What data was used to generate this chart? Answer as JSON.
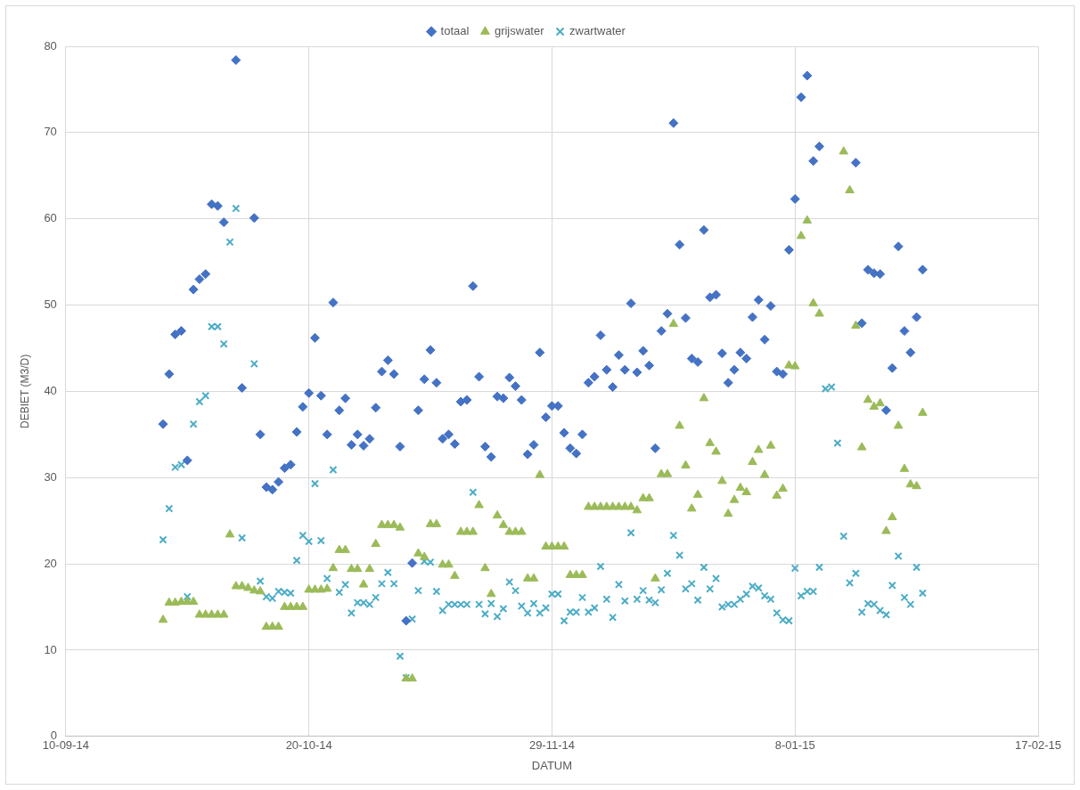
{
  "chart_data": {
    "type": "scatter",
    "xlabel": "DATUM",
    "ylabel": "DEBIET (M3/D)",
    "x": [
      "2014-09-26",
      "2014-09-27",
      "2014-09-28",
      "2014-09-29",
      "2014-09-30",
      "2014-10-01",
      "2014-10-02",
      "2014-10-03",
      "2014-10-04",
      "2014-10-05",
      "2014-10-06",
      "2014-10-07",
      "2014-10-08",
      "2014-10-09",
      "2014-10-10",
      "2014-10-11",
      "2014-10-12",
      "2014-10-13",
      "2014-10-14",
      "2014-10-15",
      "2014-10-16",
      "2014-10-17",
      "2014-10-18",
      "2014-10-19",
      "2014-10-20",
      "2014-10-21",
      "2014-10-22",
      "2014-10-23",
      "2014-10-24",
      "2014-10-25",
      "2014-10-26",
      "2014-10-27",
      "2014-10-28",
      "2014-10-29",
      "2014-10-30",
      "2014-10-31",
      "2014-11-01",
      "2014-11-02",
      "2014-11-03",
      "2014-11-04",
      "2014-11-05",
      "2014-11-06",
      "2014-11-07",
      "2014-11-08",
      "2014-11-09",
      "2014-11-10",
      "2014-11-11",
      "2014-11-12",
      "2014-11-13",
      "2014-11-14",
      "2014-11-15",
      "2014-11-16",
      "2014-11-17",
      "2014-11-18",
      "2014-11-19",
      "2014-11-20",
      "2014-11-21",
      "2014-11-22",
      "2014-11-23",
      "2014-11-24",
      "2014-11-25",
      "2014-11-26",
      "2014-11-27",
      "2014-11-28",
      "2014-11-29",
      "2014-11-30",
      "2014-12-01",
      "2014-12-02",
      "2014-12-03",
      "2014-12-04",
      "2014-12-05",
      "2014-12-06",
      "2014-12-07",
      "2014-12-08",
      "2014-12-09",
      "2014-12-10",
      "2014-12-11",
      "2014-12-12",
      "2014-12-13",
      "2014-12-14",
      "2014-12-15",
      "2014-12-16",
      "2014-12-17",
      "2014-12-18",
      "2014-12-19",
      "2014-12-20",
      "2014-12-21",
      "2014-12-22",
      "2014-12-23",
      "2014-12-24",
      "2014-12-25",
      "2014-12-26",
      "2014-12-27",
      "2014-12-28",
      "2014-12-29",
      "2014-12-30",
      "2014-12-31",
      "2015-01-01",
      "2015-01-02",
      "2015-01-03",
      "2015-01-04",
      "2015-01-05",
      "2015-01-06",
      "2015-01-07",
      "2015-01-08",
      "2015-01-09",
      "2015-01-10",
      "2015-01-11",
      "2015-01-12",
      "2015-01-13",
      "2015-01-14",
      "2015-01-15",
      "2015-01-16",
      "2015-01-17",
      "2015-01-18",
      "2015-01-19",
      "2015-01-20",
      "2015-01-21",
      "2015-01-22",
      "2015-01-23",
      "2015-01-24",
      "2015-01-25",
      "2015-01-26",
      "2015-01-27",
      "2015-01-28",
      "2015-01-29"
    ],
    "series": [
      {
        "name": "totaal",
        "color": "#4472c4",
        "marker": "diamond",
        "values": [
          36.2,
          42,
          46.6,
          47,
          32,
          51.8,
          53,
          53.6,
          61.7,
          61.5,
          59.6,
          null,
          78.4,
          40.4,
          null,
          60.1,
          35,
          28.9,
          28.6,
          29.5,
          31.1,
          31.5,
          35.3,
          38.2,
          39.8,
          46.2,
          39.5,
          35,
          50.3,
          37.8,
          39.2,
          33.8,
          35,
          33.7,
          34.5,
          38.1,
          42.3,
          43.6,
          42,
          33.6,
          13.4,
          20.1,
          37.8,
          41.4,
          44.8,
          41,
          34.5,
          35,
          33.9,
          38.8,
          39,
          52.2,
          41.7,
          33.6,
          32.4,
          39.4,
          39.2,
          41.6,
          40.6,
          39,
          32.7,
          33.8,
          44.5,
          37,
          38.3,
          38.3,
          35.2,
          33.4,
          32.8,
          35,
          41,
          41.7,
          46.5,
          42.5,
          40.5,
          44.2,
          42.5,
          50.2,
          42.2,
          44.7,
          43,
          33.4,
          47,
          49,
          71.1,
          57,
          48.5,
          43.8,
          43.4,
          58.7,
          50.9,
          51.2,
          44.4,
          41,
          42.5,
          44.5,
          43.8,
          48.6,
          50.6,
          46,
          49.9,
          42.3,
          42,
          56.4,
          62.3,
          74.1,
          76.6,
          66.7,
          68.4,
          null,
          null,
          null,
          null,
          null,
          66.5,
          47.9,
          54.1,
          53.7,
          53.6,
          37.8,
          42.7,
          56.8,
          47,
          44.5,
          48.6,
          54.1
        ]
      },
      {
        "name": "grijswater",
        "color": "#9bbb59",
        "marker": "triangle",
        "values": [
          13.5,
          15.5,
          15.5,
          15.6,
          15.6,
          15.6,
          14.1,
          14.1,
          14.1,
          14.1,
          14.1,
          23.4,
          17.4,
          17.4,
          17.2,
          16.9,
          16.8,
          12.7,
          12.7,
          12.7,
          15,
          15,
          15,
          15,
          17,
          17,
          17,
          17.1,
          19.5,
          21.6,
          21.6,
          19.4,
          19.4,
          17.6,
          19.4,
          22.3,
          24.5,
          24.5,
          24.5,
          24.2,
          6.7,
          6.7,
          21.2,
          20.8,
          24.6,
          24.6,
          19.9,
          19.9,
          18.6,
          23.7,
          23.7,
          23.7,
          26.8,
          19.5,
          16.5,
          25.6,
          24.5,
          23.7,
          23.7,
          23.7,
          18.3,
          18.3,
          30.3,
          22,
          22,
          22,
          22,
          18.7,
          18.7,
          18.7,
          26.6,
          26.6,
          26.6,
          26.6,
          26.6,
          26.6,
          26.6,
          26.6,
          26.2,
          27.6,
          27.6,
          18.3,
          30.4,
          30.4,
          47.8,
          36,
          31.4,
          26.4,
          28,
          39.2,
          34,
          33,
          29.6,
          25.8,
          27.4,
          28.8,
          28.3,
          31.8,
          33.2,
          30.3,
          33.7,
          27.9,
          28.7,
          43,
          42.9,
          58,
          59.8,
          50.2,
          49,
          null,
          null,
          null,
          67.8,
          63.3,
          47.6,
          33.5,
          39,
          38.2,
          38.6,
          23.8,
          25.4,
          36,
          31,
          29.2,
          29,
          37.5
        ]
      },
      {
        "name": "zwartwater",
        "color": "#4bacc6",
        "marker": "cross",
        "values": [
          22.8,
          26.4,
          31.2,
          31.5,
          16.2,
          36.2,
          38.8,
          39.5,
          47.5,
          47.5,
          45.5,
          57.3,
          61.2,
          23,
          null,
          43.2,
          18,
          16.2,
          16,
          16.8,
          16.7,
          16.6,
          20.4,
          23.3,
          22.6,
          29.3,
          22.7,
          18.3,
          30.9,
          16.7,
          17.6,
          14.3,
          15.5,
          15.5,
          15.3,
          16.1,
          17.7,
          19,
          17.7,
          9.3,
          6.8,
          13.6,
          16.9,
          20.3,
          20.2,
          16.8,
          14.6,
          15.3,
          15.3,
          15.3,
          15.3,
          28.3,
          15.3,
          14.2,
          15.4,
          13.9,
          14.8,
          17.9,
          16.9,
          15.1,
          14.3,
          15.4,
          14.3,
          14.9,
          16.5,
          16.5,
          13.4,
          14.4,
          14.4,
          16.1,
          14.4,
          14.9,
          19.7,
          15.9,
          13.8,
          17.6,
          15.7,
          23.6,
          15.9,
          16.9,
          15.8,
          15.5,
          17,
          18.9,
          23.3,
          21,
          17.1,
          17.7,
          15.8,
          19.6,
          17.1,
          18.3,
          15,
          15.3,
          15.3,
          15.9,
          16.5,
          17.4,
          17.2,
          16.3,
          15.9,
          14.3,
          13.5,
          13.4,
          19.5,
          16.3,
          16.8,
          16.8,
          19.6,
          40.3,
          40.5,
          34,
          23.2,
          17.8,
          18.9,
          14.4,
          15.4,
          15.3,
          14.6,
          14.1,
          17.5,
          20.9,
          16.1,
          15.3,
          19.6,
          16.6
        ]
      }
    ],
    "xlim": [
      "2014-09-10",
      "2015-02-17"
    ],
    "xticks": [
      {
        "value": "2014-09-10",
        "label": "10-09-14"
      },
      {
        "value": "2014-10-20",
        "label": "20-10-14"
      },
      {
        "value": "2014-11-29",
        "label": "29-11-14"
      },
      {
        "value": "2015-01-08",
        "label": "8-01-15"
      },
      {
        "value": "2015-02-17",
        "label": "17-02-15"
      }
    ],
    "ylim": [
      0,
      80
    ],
    "yticks": [
      0,
      10,
      20,
      30,
      40,
      50,
      60,
      70,
      80
    ],
    "grid": true,
    "legend": "top"
  }
}
